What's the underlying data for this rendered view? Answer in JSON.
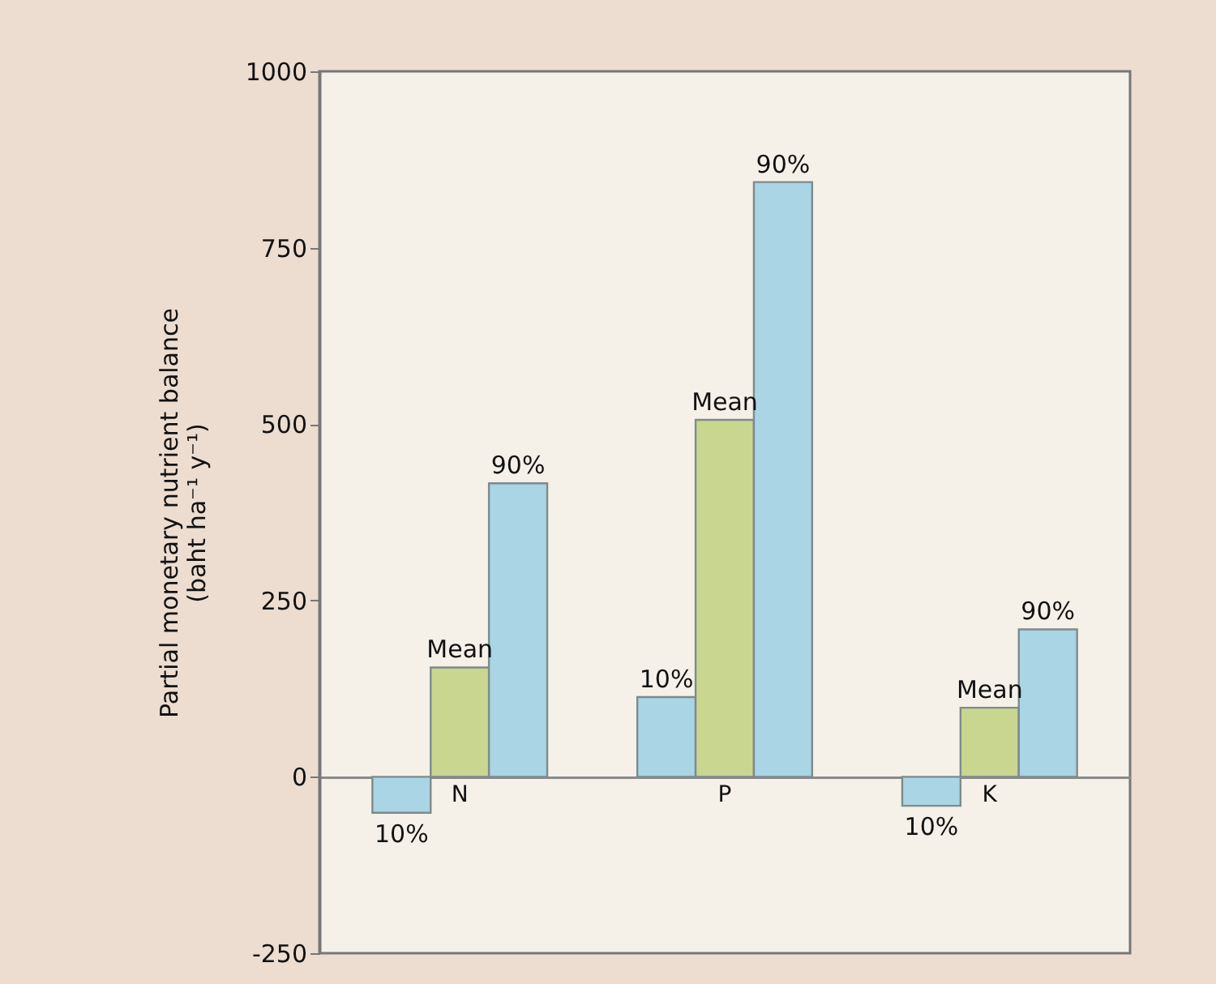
{
  "chart_data": {
    "type": "bar",
    "ylabel": "Partial monetary nutrient balance\n(baht ha⁻¹ y⁻¹)",
    "categories": [
      "N",
      "P",
      "K"
    ],
    "series": [
      {
        "name": "10%",
        "color": "#a9d5e5",
        "values": [
          -51,
          113,
          -41
        ]
      },
      {
        "name": "Mean",
        "color": "#c9d68f",
        "values": [
          155,
          506,
          98
        ]
      },
      {
        "name": "90%",
        "color": "#a9d5e5",
        "values": [
          416,
          843,
          209
        ]
      }
    ],
    "ylim": [
      -250,
      1000
    ],
    "yticks": [
      -250,
      0,
      250,
      500,
      750,
      1000
    ],
    "grid": false,
    "legend": false
  }
}
